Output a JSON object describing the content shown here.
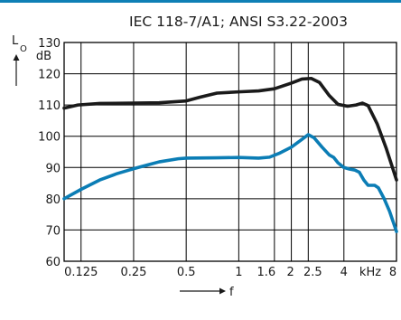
{
  "colors": {
    "accent_rule": "#0e7fb5",
    "grid": "#000000",
    "series_black": "#1a1a1a",
    "series_blue": "#0b7db5"
  },
  "chart_data": {
    "type": "line",
    "title": "IEC 118-7/A1; ANSI S3.22-2003",
    "ylabel_main": "L",
    "ylabel_sub": "O",
    "ylabel_unit": "dB",
    "xlabel": "f",
    "xlabel_unit": "kHz",
    "x_scale": "log",
    "xlim": [
      0.1,
      8
    ],
    "ylim": [
      60,
      130
    ],
    "grid": true,
    "x_ticks": [
      {
        "value": 0.125,
        "label": "0.125"
      },
      {
        "value": 0.25,
        "label": "0.25"
      },
      {
        "value": 0.5,
        "label": "0.5"
      },
      {
        "value": 1,
        "label": "1"
      },
      {
        "value": 1.6,
        "label": "1.6"
      },
      {
        "value": 2,
        "label": "2"
      },
      {
        "value": 2.5,
        "label": "2.5"
      },
      {
        "value": 4,
        "label": "4"
      },
      {
        "value": 8,
        "label": "8"
      }
    ],
    "x_gridlines": [
      0.125,
      0.25,
      0.5,
      1,
      1.6,
      2,
      2.5,
      4,
      8
    ],
    "y_ticks": [
      {
        "value": 60,
        "label": "60"
      },
      {
        "value": 70,
        "label": "70"
      },
      {
        "value": 80,
        "label": "80"
      },
      {
        "value": 90,
        "label": "90"
      },
      {
        "value": 100,
        "label": "100"
      },
      {
        "value": 110,
        "label": "110"
      },
      {
        "value": 120,
        "label": "120"
      },
      {
        "value": 130,
        "label": "130"
      }
    ],
    "series": [
      {
        "color": "#1a1a1a",
        "points": [
          [
            0.1,
            109
          ],
          [
            0.12,
            110
          ],
          [
            0.16,
            110.5
          ],
          [
            0.25,
            110.6
          ],
          [
            0.35,
            110.7
          ],
          [
            0.5,
            111.3
          ],
          [
            0.6,
            112.5
          ],
          [
            0.75,
            113.8
          ],
          [
            1,
            114.2
          ],
          [
            1.3,
            114.5
          ],
          [
            1.6,
            115.2
          ],
          [
            2,
            117
          ],
          [
            2.3,
            118.3
          ],
          [
            2.6,
            118.5
          ],
          [
            2.9,
            117.2
          ],
          [
            3.3,
            113
          ],
          [
            3.7,
            110.2
          ],
          [
            4.2,
            109.6
          ],
          [
            4.7,
            110
          ],
          [
            5.1,
            110.6
          ],
          [
            5.5,
            109.8
          ],
          [
            6.2,
            104
          ],
          [
            7,
            96
          ],
          [
            8,
            86
          ]
        ]
      },
      {
        "color": "#0b7db5",
        "points": [
          [
            0.1,
            80
          ],
          [
            0.125,
            83
          ],
          [
            0.16,
            86
          ],
          [
            0.2,
            88
          ],
          [
            0.25,
            89.6
          ],
          [
            0.3,
            90.8
          ],
          [
            0.35,
            91.8
          ],
          [
            0.45,
            92.8
          ],
          [
            0.5,
            93
          ],
          [
            0.75,
            93.1
          ],
          [
            1,
            93.2
          ],
          [
            1.3,
            93
          ],
          [
            1.5,
            93.3
          ],
          [
            1.7,
            94.5
          ],
          [
            2,
            96.5
          ],
          [
            2.3,
            99
          ],
          [
            2.5,
            100.5
          ],
          [
            2.7,
            99.5
          ],
          [
            3,
            96.5
          ],
          [
            3.3,
            94
          ],
          [
            3.5,
            93.2
          ],
          [
            3.7,
            91.5
          ],
          [
            4,
            90
          ],
          [
            4.3,
            89.5
          ],
          [
            4.6,
            89.2
          ],
          [
            4.9,
            88.5
          ],
          [
            5.2,
            86
          ],
          [
            5.5,
            84.3
          ],
          [
            6,
            84.3
          ],
          [
            6.3,
            83.5
          ],
          [
            6.8,
            80
          ],
          [
            7.3,
            76
          ],
          [
            8,
            69.5
          ]
        ]
      }
    ]
  }
}
